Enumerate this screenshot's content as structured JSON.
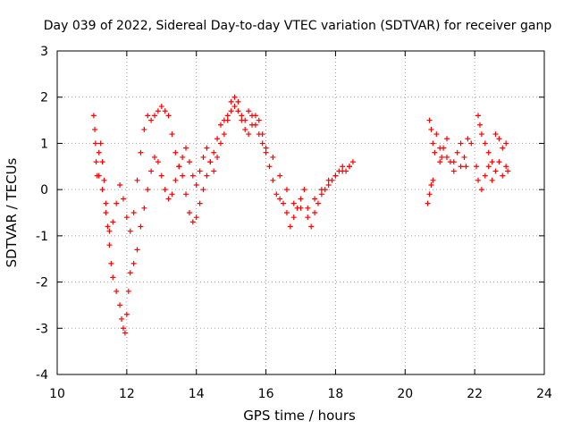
{
  "chart_data": {
    "type": "scatter",
    "title": "Day 039 of 2022, Sidereal Day-to-day VTEC variation (SDTVAR) for receiver ganp",
    "xlabel": "GPS time / hours",
    "ylabel": "SDTVAR / TECUs",
    "xlim": [
      10,
      24
    ],
    "ylim": [
      -4,
      3
    ],
    "xticks": [
      "10",
      "12",
      "14",
      "16",
      "18",
      "20",
      "22",
      "24"
    ],
    "yticks": [
      "-4",
      "-3",
      "-2",
      "-1",
      "0",
      "1",
      "2",
      "3"
    ],
    "grid": true,
    "marker": "+",
    "color": "#ff0000",
    "series": [
      {
        "name": "SDTVAR",
        "points": [
          [
            11.05,
            1.6
          ],
          [
            11.08,
            1.3
          ],
          [
            11.1,
            1.0
          ],
          [
            11.12,
            0.6
          ],
          [
            11.15,
            0.3
          ],
          [
            11.2,
            0.8
          ],
          [
            11.25,
            1.0
          ],
          [
            11.3,
            0.6
          ],
          [
            11.35,
            0.2
          ],
          [
            11.4,
            -0.3
          ],
          [
            11.45,
            -0.8
          ],
          [
            11.5,
            -1.2
          ],
          [
            11.55,
            -1.6
          ],
          [
            11.6,
            -1.9
          ],
          [
            11.7,
            -2.2
          ],
          [
            11.8,
            -2.5
          ],
          [
            11.85,
            -2.8
          ],
          [
            11.9,
            -3.0
          ],
          [
            11.95,
            -3.1
          ],
          [
            12.0,
            -2.7
          ],
          [
            12.05,
            -2.2
          ],
          [
            12.1,
            -1.8
          ],
          [
            12.2,
            -1.6
          ],
          [
            12.3,
            -1.3
          ],
          [
            12.4,
            -0.8
          ],
          [
            12.5,
            -0.4
          ],
          [
            12.6,
            0.0
          ],
          [
            12.7,
            0.4
          ],
          [
            12.8,
            0.7
          ],
          [
            12.9,
            0.6
          ],
          [
            13.0,
            0.3
          ],
          [
            13.1,
            0.0
          ],
          [
            13.2,
            -0.2
          ],
          [
            13.3,
            -0.1
          ],
          [
            13.4,
            0.2
          ],
          [
            13.5,
            0.5
          ],
          [
            13.6,
            0.3
          ],
          [
            13.7,
            -0.1
          ],
          [
            13.8,
            -0.5
          ],
          [
            13.9,
            -0.7
          ],
          [
            14.0,
            -0.6
          ],
          [
            14.1,
            -0.3
          ],
          [
            14.2,
            0.0
          ],
          [
            14.3,
            0.3
          ],
          [
            14.4,
            0.6
          ],
          [
            14.5,
            0.8
          ],
          [
            14.6,
            1.1
          ],
          [
            14.7,
            1.4
          ],
          [
            14.8,
            1.5
          ],
          [
            14.9,
            1.6
          ],
          [
            15.0,
            1.9
          ],
          [
            15.1,
            2.0
          ],
          [
            15.2,
            1.9
          ],
          [
            15.3,
            1.6
          ],
          [
            15.4,
            1.5
          ],
          [
            15.5,
            1.7
          ],
          [
            15.6,
            1.6
          ],
          [
            15.7,
            1.4
          ],
          [
            15.8,
            1.2
          ],
          [
            15.9,
            1.0
          ],
          [
            16.0,
            0.8
          ],
          [
            16.1,
            0.5
          ],
          [
            16.2,
            0.2
          ],
          [
            16.3,
            -0.1
          ],
          [
            16.4,
            -0.2
          ],
          [
            16.5,
            -0.3
          ],
          [
            16.6,
            -0.5
          ],
          [
            16.7,
            -0.8
          ],
          [
            16.8,
            -0.6
          ],
          [
            16.9,
            -0.4
          ],
          [
            17.0,
            -0.2
          ],
          [
            17.1,
            0.0
          ],
          [
            17.2,
            -0.6
          ],
          [
            17.3,
            -0.8
          ],
          [
            17.4,
            -0.5
          ],
          [
            17.5,
            -0.3
          ],
          [
            17.6,
            -0.1
          ],
          [
            17.7,
            0.0
          ],
          [
            17.8,
            0.1
          ],
          [
            17.9,
            0.2
          ],
          [
            18.0,
            0.3
          ],
          [
            18.1,
            0.4
          ],
          [
            18.2,
            0.5
          ],
          [
            18.3,
            0.4
          ],
          [
            18.4,
            0.5
          ],
          [
            18.5,
            0.6
          ],
          [
            11.2,
            0.3
          ],
          [
            11.3,
            0.0
          ],
          [
            11.4,
            -0.5
          ],
          [
            11.5,
            -0.9
          ],
          [
            11.6,
            -0.7
          ],
          [
            11.7,
            -0.3
          ],
          [
            11.8,
            0.1
          ],
          [
            11.9,
            -0.2
          ],
          [
            12.0,
            -0.6
          ],
          [
            12.1,
            -0.9
          ],
          [
            12.2,
            -0.5
          ],
          [
            12.3,
            0.2
          ],
          [
            12.4,
            0.8
          ],
          [
            12.5,
            1.3
          ],
          [
            12.6,
            1.6
          ],
          [
            12.7,
            1.5
          ],
          [
            12.8,
            1.6
          ],
          [
            12.9,
            1.7
          ],
          [
            13.0,
            1.8
          ],
          [
            13.1,
            1.7
          ],
          [
            13.2,
            1.6
          ],
          [
            13.3,
            1.2
          ],
          [
            13.4,
            0.8
          ],
          [
            13.5,
            0.5
          ],
          [
            13.6,
            0.7
          ],
          [
            13.7,
            0.9
          ],
          [
            13.8,
            0.6
          ],
          [
            13.9,
            0.3
          ],
          [
            14.0,
            0.1
          ],
          [
            14.1,
            0.4
          ],
          [
            14.2,
            0.7
          ],
          [
            14.3,
            0.9
          ],
          [
            14.4,
            0.6
          ],
          [
            14.5,
            0.4
          ],
          [
            14.6,
            0.7
          ],
          [
            14.7,
            1.0
          ],
          [
            14.8,
            1.2
          ],
          [
            14.9,
            1.5
          ],
          [
            15.0,
            1.7
          ],
          [
            15.1,
            1.8
          ],
          [
            15.2,
            1.7
          ],
          [
            15.3,
            1.5
          ],
          [
            15.4,
            1.3
          ],
          [
            15.5,
            1.2
          ],
          [
            15.6,
            1.4
          ],
          [
            15.7,
            1.6
          ],
          [
            15.8,
            1.5
          ],
          [
            15.9,
            1.2
          ],
          [
            16.0,
            0.9
          ],
          [
            16.2,
            0.7
          ],
          [
            16.4,
            0.3
          ],
          [
            16.6,
            0.0
          ],
          [
            16.8,
            -0.3
          ],
          [
            17.0,
            -0.4
          ],
          [
            17.2,
            -0.4
          ],
          [
            17.4,
            -0.2
          ],
          [
            17.6,
            0.0
          ],
          [
            17.8,
            0.2
          ],
          [
            18.0,
            0.3
          ],
          [
            18.2,
            0.4
          ],
          [
            18.4,
            0.5
          ],
          [
            20.65,
            -0.3
          ],
          [
            20.7,
            -0.1
          ],
          [
            20.75,
            0.1
          ],
          [
            20.8,
            0.2
          ],
          [
            20.7,
            1.5
          ],
          [
            20.75,
            1.3
          ],
          [
            20.8,
            1.0
          ],
          [
            20.85,
            0.8
          ],
          [
            20.9,
            1.2
          ],
          [
            21.0,
            0.9
          ],
          [
            21.05,
            0.7
          ],
          [
            21.1,
            0.9
          ],
          [
            21.2,
            1.1
          ],
          [
            21.3,
            0.6
          ],
          [
            21.4,
            0.4
          ],
          [
            21.5,
            0.8
          ],
          [
            21.6,
            1.0
          ],
          [
            21.7,
            0.7
          ],
          [
            21.75,
            0.5
          ],
          [
            21.8,
            1.1
          ],
          [
            21.9,
            1.0
          ],
          [
            22.1,
            1.6
          ],
          [
            22.15,
            1.4
          ],
          [
            22.2,
            1.2
          ],
          [
            22.3,
            1.0
          ],
          [
            22.4,
            0.8
          ],
          [
            22.5,
            0.6
          ],
          [
            22.6,
            1.2
          ],
          [
            22.7,
            1.1
          ],
          [
            22.8,
            0.9
          ],
          [
            22.9,
            1.0
          ],
          [
            22.05,
            0.5
          ],
          [
            22.1,
            0.2
          ],
          [
            22.2,
            0.0
          ],
          [
            22.3,
            0.3
          ],
          [
            22.4,
            0.5
          ],
          [
            22.5,
            0.2
          ],
          [
            22.6,
            0.4
          ],
          [
            22.7,
            0.6
          ],
          [
            22.8,
            0.3
          ],
          [
            22.9,
            0.5
          ],
          [
            22.95,
            0.4
          ],
          [
            21.0,
            0.6
          ],
          [
            21.2,
            0.7
          ],
          [
            21.4,
            0.6
          ],
          [
            21.6,
            0.5
          ]
        ]
      }
    ]
  }
}
